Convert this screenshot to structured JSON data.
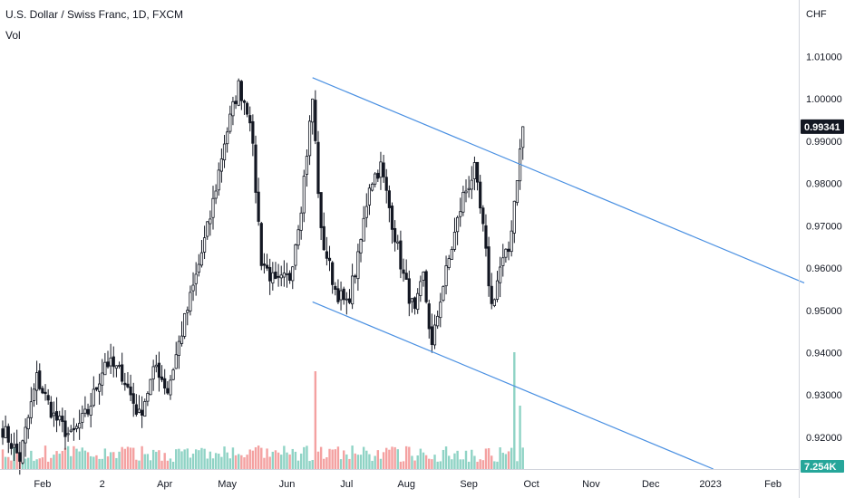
{
  "header": {
    "title": "U.S. Dollar / Swiss Franc, 1D, FXCM",
    "vol_label": "Vol"
  },
  "chart_data": {
    "type": "candlestick",
    "title": "U.S. Dollar / Swiss Franc, 1D, FXCM",
    "currency_label": "CHF",
    "y_ticks": [
      1.01,
      1.0,
      0.99,
      0.98,
      0.97,
      0.96,
      0.95,
      0.94,
      0.93,
      0.92
    ],
    "y_tick_labels": [
      "1.01000",
      "1.00000",
      "0.99000",
      "0.98000",
      "0.97000",
      "0.96000",
      "0.95000",
      "0.94000",
      "0.93000",
      "0.92000"
    ],
    "ylim": [
      0.9125,
      1.0225
    ],
    "x_ticks": [
      "Feb",
      "2",
      "Apr",
      "May",
      "Jun",
      "Jul",
      "Aug",
      "Sep",
      "Oct",
      "Nov",
      "Dec",
      "2023",
      "Feb"
    ],
    "last_price": 0.99341,
    "last_price_label": "0.99341",
    "last_volume_label": "7.254K",
    "price_path": [
      {
        "bar": 0,
        "price": 0.922
      },
      {
        "bar": 6,
        "price": 0.915
      },
      {
        "bar": 12,
        "price": 0.934
      },
      {
        "bar": 18,
        "price": 0.925
      },
      {
        "bar": 24,
        "price": 0.92
      },
      {
        "bar": 30,
        "price": 0.926
      },
      {
        "bar": 36,
        "price": 0.938
      },
      {
        "bar": 42,
        "price": 0.935
      },
      {
        "bar": 48,
        "price": 0.925
      },
      {
        "bar": 54,
        "price": 0.937
      },
      {
        "bar": 58,
        "price": 0.931
      },
      {
        "bar": 63,
        "price": 0.945
      },
      {
        "bar": 68,
        "price": 0.958
      },
      {
        "bar": 73,
        "price": 0.972
      },
      {
        "bar": 78,
        "price": 0.99
      },
      {
        "bar": 83,
        "price": 1.003
      },
      {
        "bar": 87,
        "price": 0.996
      },
      {
        "bar": 91,
        "price": 0.962
      },
      {
        "bar": 96,
        "price": 0.956
      },
      {
        "bar": 101,
        "price": 0.958
      },
      {
        "bar": 105,
        "price": 0.975
      },
      {
        "bar": 109,
        "price": 1.0
      },
      {
        "bar": 112,
        "price": 0.968
      },
      {
        "bar": 117,
        "price": 0.955
      },
      {
        "bar": 121,
        "price": 0.951
      },
      {
        "bar": 125,
        "price": 0.962
      },
      {
        "bar": 129,
        "price": 0.98
      },
      {
        "bar": 133,
        "price": 0.984
      },
      {
        "bar": 137,
        "price": 0.971
      },
      {
        "bar": 141,
        "price": 0.958
      },
      {
        "bar": 145,
        "price": 0.949
      },
      {
        "bar": 148,
        "price": 0.958
      },
      {
        "bar": 151,
        "price": 0.941
      },
      {
        "bar": 154,
        "price": 0.953
      },
      {
        "bar": 158,
        "price": 0.965
      },
      {
        "bar": 162,
        "price": 0.977
      },
      {
        "bar": 166,
        "price": 0.983
      },
      {
        "bar": 169,
        "price": 0.969
      },
      {
        "bar": 172,
        "price": 0.951
      },
      {
        "bar": 175,
        "price": 0.96
      },
      {
        "bar": 178,
        "price": 0.964
      },
      {
        "bar": 181,
        "price": 0.982
      },
      {
        "bar": 183,
        "price": 0.993
      }
    ],
    "trendlines": [
      {
        "name": "upper channel",
        "from": {
          "bar": 109,
          "price": 1.005
        },
        "to": {
          "bar": 282,
          "price": 0.9565
        },
        "color": "#4a90e2"
      },
      {
        "name": "lower channel",
        "from": {
          "bar": 109,
          "price": 0.952
        },
        "to": {
          "bar": 250,
          "price": 0.9125
        },
        "color": "#4a90e2"
      }
    ],
    "colors": {
      "candles": "#131722",
      "vol_up": "#8fd3c5",
      "vol_down": "#f4a1a1",
      "trendline": "#4a90e2"
    }
  }
}
